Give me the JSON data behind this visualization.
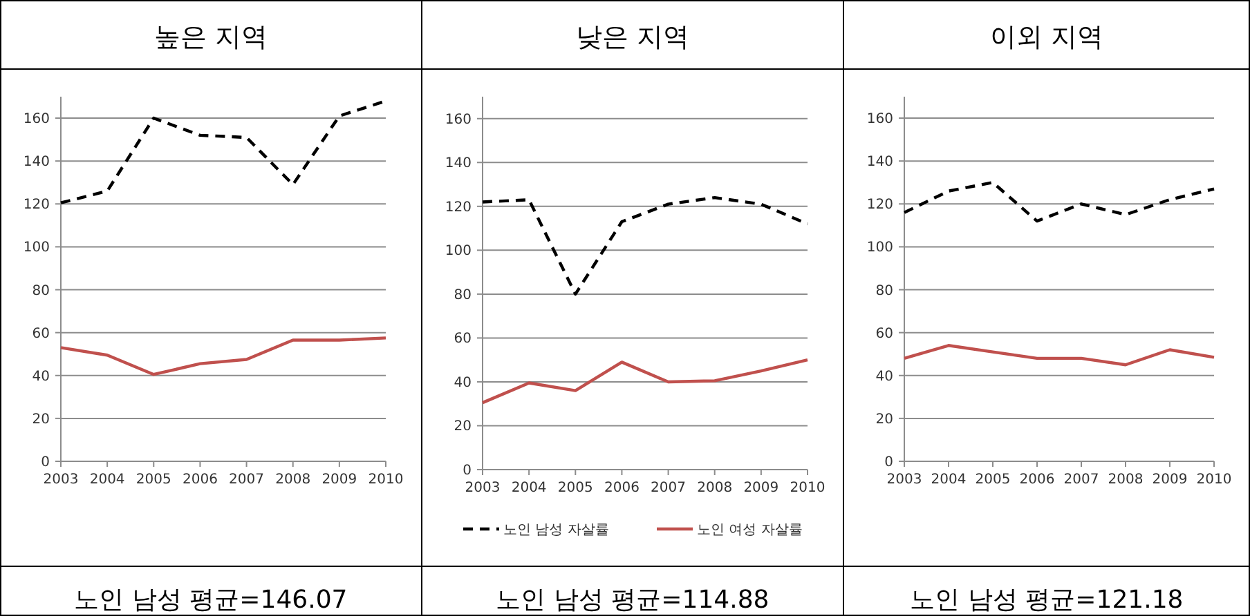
{
  "chart_data": [
    {
      "type": "line",
      "title": "높은 지역",
      "categories": [
        "2003",
        "2004",
        "2005",
        "2006",
        "2007",
        "2008",
        "2009",
        "2010"
      ],
      "ylim": [
        0,
        170
      ],
      "yticks": [
        0,
        20,
        40,
        60,
        80,
        100,
        120,
        140,
        160
      ],
      "grid": "y",
      "legend": false,
      "annotations": [
        "노인 남성 평균=146.07"
      ],
      "series": [
        {
          "color": "#000000",
          "line_style": "dashed",
          "values": [
            120.5,
            126,
            160,
            152,
            151,
            129,
            161,
            168
          ]
        },
        {
          "color": "#c0504d",
          "line_style": "solid",
          "values": [
            53,
            49.5,
            40.5,
            45.5,
            47.5,
            56.5,
            56.5,
            57.5
          ]
        }
      ]
    },
    {
      "type": "line",
      "title": "낮은 지역",
      "categories": [
        "2003",
        "2004",
        "2005",
        "2006",
        "2007",
        "2008",
        "2009",
        "2010"
      ],
      "ylim": [
        0,
        170
      ],
      "yticks": [
        0,
        20,
        40,
        60,
        80,
        100,
        120,
        140,
        160
      ],
      "grid": "y",
      "legend": "bottom",
      "annotations": [
        "노인 남성 평균=114.88"
      ],
      "series": [
        {
          "name": "노인 남성 자살률",
          "color": "#000000",
          "line_style": "dashed",
          "values": [
            122,
            123,
            80,
            113,
            121,
            124,
            121,
            112
          ]
        },
        {
          "name": "노인 여성 자살률",
          "color": "#c0504d",
          "line_style": "solid",
          "values": [
            30.5,
            39.5,
            36,
            49,
            40,
            40.5,
            45,
            50
          ]
        }
      ]
    },
    {
      "type": "line",
      "title": "이외 지역",
      "categories": [
        "2003",
        "2004",
        "2005",
        "2006",
        "2007",
        "2008",
        "2009",
        "2010"
      ],
      "ylim": [
        0,
        170
      ],
      "yticks": [
        0,
        20,
        40,
        60,
        80,
        100,
        120,
        140,
        160
      ],
      "grid": "y",
      "legend": false,
      "annotations": [
        "노인 남성 평균=121.18"
      ],
      "series": [
        {
          "color": "#000000",
          "line_style": "dashed",
          "values": [
            116,
            126,
            130,
            112,
            120,
            115,
            122,
            127
          ]
        },
        {
          "color": "#c0504d",
          "line_style": "solid",
          "values": [
            48,
            54,
            51,
            48,
            48,
            45,
            52,
            48.5
          ]
        }
      ]
    }
  ]
}
